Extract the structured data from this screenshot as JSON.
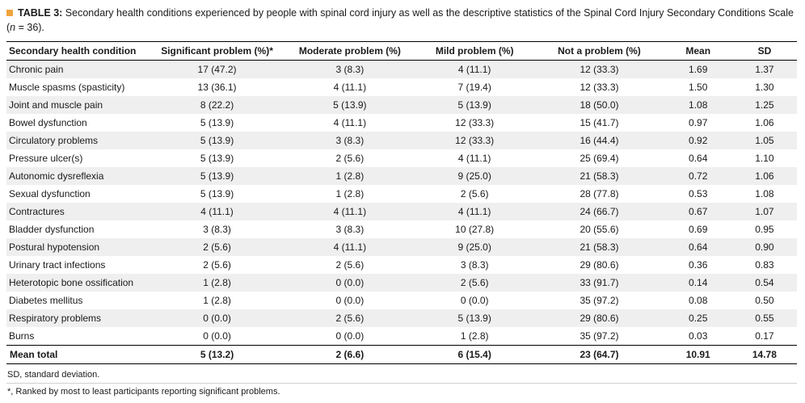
{
  "caption": {
    "label": "TABLE 3:",
    "text_before_n": " Secondary health conditions experienced by people with spinal cord injury as well as the descriptive statistics of the Spinal Cord Injury Secondary Conditions Scale (",
    "n_symbol": "n",
    "text_after_n": " = 36)."
  },
  "table": {
    "columns": [
      "Secondary health condition",
      "Significant problem (%)*",
      "Moderate problem (%)",
      "Mild problem (%)",
      "Not a problem (%)",
      "Mean",
      "SD"
    ],
    "rows": [
      {
        "condition": "Chronic pain",
        "significant": "17 (47.2)",
        "moderate": "3 (8.3)",
        "mild": "4 (11.1)",
        "not_a_problem": "12 (33.3)",
        "mean": "1.69",
        "sd": "1.37"
      },
      {
        "condition": "Muscle spasms (spasticity)",
        "significant": "13 (36.1)",
        "moderate": "4 (11.1)",
        "mild": "7 (19.4)",
        "not_a_problem": "12 (33.3)",
        "mean": "1.50",
        "sd": "1.30"
      },
      {
        "condition": "Joint and muscle pain",
        "significant": "8 (22.2)",
        "moderate": "5 (13.9)",
        "mild": "5 (13.9)",
        "not_a_problem": "18 (50.0)",
        "mean": "1.08",
        "sd": "1.25"
      },
      {
        "condition": "Bowel dysfunction",
        "significant": "5 (13.9)",
        "moderate": "4 (11.1)",
        "mild": "12 (33.3)",
        "not_a_problem": "15 (41.7)",
        "mean": "0.97",
        "sd": "1.06"
      },
      {
        "condition": "Circulatory problems",
        "significant": "5 (13.9)",
        "moderate": "3 (8.3)",
        "mild": "12 (33.3)",
        "not_a_problem": "16 (44.4)",
        "mean": "0.92",
        "sd": "1.05"
      },
      {
        "condition": "Pressure ulcer(s)",
        "significant": "5 (13.9)",
        "moderate": "2 (5.6)",
        "mild": "4 (11.1)",
        "not_a_problem": "25 (69.4)",
        "mean": "0.64",
        "sd": "1.10"
      },
      {
        "condition": "Autonomic dysreflexia",
        "significant": "5 (13.9)",
        "moderate": "1 (2.8)",
        "mild": "9 (25.0)",
        "not_a_problem": "21 (58.3)",
        "mean": "0.72",
        "sd": "1.06"
      },
      {
        "condition": "Sexual dysfunction",
        "significant": "5 (13.9)",
        "moderate": "1 (2.8)",
        "mild": "2 (5.6)",
        "not_a_problem": "28 (77.8)",
        "mean": "0.53",
        "sd": "1.08"
      },
      {
        "condition": "Contractures",
        "significant": "4 (11.1)",
        "moderate": "4 (11.1)",
        "mild": "4 (11.1)",
        "not_a_problem": "24 (66.7)",
        "mean": "0.67",
        "sd": "1.07"
      },
      {
        "condition": "Bladder dysfunction",
        "significant": "3 (8.3)",
        "moderate": "3 (8.3)",
        "mild": "10 (27.8)",
        "not_a_problem": "20 (55.6)",
        "mean": "0.69",
        "sd": "0.95"
      },
      {
        "condition": "Postural hypotension",
        "significant": "2 (5.6)",
        "moderate": "4 (11.1)",
        "mild": "9 (25.0)",
        "not_a_problem": "21 (58.3)",
        "mean": "0.64",
        "sd": "0.90"
      },
      {
        "condition": "Urinary tract infections",
        "significant": "2 (5.6)",
        "moderate": "2 (5.6)",
        "mild": "3 (8.3)",
        "not_a_problem": "29 (80.6)",
        "mean": "0.36",
        "sd": "0.83"
      },
      {
        "condition": "Heterotopic bone ossification",
        "significant": "1 (2.8)",
        "moderate": "0 (0.0)",
        "mild": "2 (5.6)",
        "not_a_problem": "33 (91.7)",
        "mean": "0.14",
        "sd": "0.54"
      },
      {
        "condition": "Diabetes mellitus",
        "significant": "1 (2.8)",
        "moderate": "0 (0.0)",
        "mild": "0 (0.0)",
        "not_a_problem": "35 (97.2)",
        "mean": "0.08",
        "sd": "0.50"
      },
      {
        "condition": "Respiratory problems",
        "significant": "0 (0.0)",
        "moderate": "2 (5.6)",
        "mild": "5 (13.9)",
        "not_a_problem": "29 (80.6)",
        "mean": "0.25",
        "sd": "0.55"
      },
      {
        "condition": "Burns",
        "significant": "0 (0.0)",
        "moderate": "0 (0.0)",
        "mild": "1 (2.8)",
        "not_a_problem": "35 (97.2)",
        "mean": "0.03",
        "sd": "0.17"
      }
    ],
    "total_row": {
      "condition": "Mean total",
      "significant": "5 (13.2)",
      "moderate": "2 (6.6)",
      "mild": "6 (15.4)",
      "not_a_problem": "23 (64.7)",
      "mean": "10.91",
      "sd": "14.78"
    }
  },
  "footnotes": [
    "SD, standard deviation.",
    "*, Ranked by most to least participants reporting significant problems."
  ],
  "colors": {
    "caption_marker": "#f0a43c",
    "row_shade": "#efefef",
    "rule": "#000000"
  }
}
